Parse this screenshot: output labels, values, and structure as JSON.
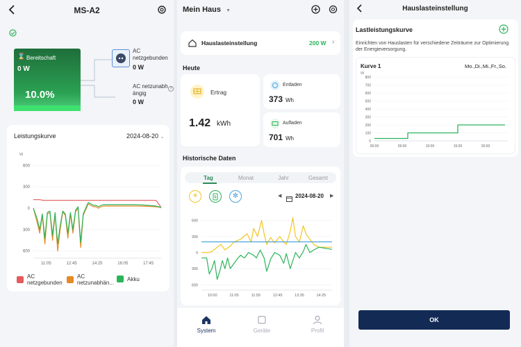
{
  "colors": {
    "green": "#2bb35a",
    "red": "#e35b5b",
    "orange": "#e58a26",
    "yellow": "#f2c522",
    "blue": "#4aa3e0",
    "navy": "#13284f",
    "ok_bg": "#132a55"
  },
  "screen1": {
    "title": "MS-A2",
    "status_icon": "check-circle-icon",
    "device_status": "Bereitschaft",
    "device_power": "0 W",
    "soc": "10.0%",
    "grid_label": "AC\nnetzgebunden",
    "grid_value": "0 W",
    "offgrid_label": "AC netzunabh\nängig",
    "offgrid_value": "0 W",
    "curve_title": "Leistungskurve",
    "curve_date": "2024-08-20",
    "legend": [
      {
        "label": "AC\nnetzgebunden",
        "color": "#e35b5b"
      },
      {
        "label": "AC\nnetzunabhän...",
        "color": "#e58a26"
      },
      {
        "label": "Akku",
        "color": "#2bb35a"
      }
    ]
  },
  "chart1_data": {
    "type": "line",
    "ylabel": "W",
    "ylim": [
      -700,
      700
    ],
    "yticks": [
      "600",
      "300",
      "0",
      "300",
      "600"
    ],
    "ytick_values": [
      600,
      300,
      0,
      -300,
      -600
    ],
    "xticks": [
      "11:05",
      "12:45",
      "14:25",
      "16:05",
      "17:45"
    ],
    "xlim": [
      0,
      100
    ],
    "series": [
      {
        "name": "AC netzgebunden",
        "color": "#e35b5b",
        "x": [
          0,
          5,
          8,
          20,
          40,
          60,
          80,
          96,
          100
        ],
        "y": [
          120,
          120,
          110,
          110,
          110,
          110,
          110,
          110,
          10
        ]
      },
      {
        "name": "AC netzunabhängig",
        "color": "#e58a26",
        "x": [
          0,
          3,
          5,
          7,
          9,
          11,
          13,
          15,
          17,
          19,
          21,
          23,
          25,
          27,
          29,
          31,
          33,
          35,
          37,
          39,
          41,
          43,
          45,
          47,
          49,
          51,
          53,
          55,
          60,
          70,
          80,
          90,
          96,
          100
        ],
        "y": [
          0,
          -200,
          -350,
          -100,
          -500,
          -80,
          -60,
          -450,
          -80,
          -600,
          -300,
          -50,
          -100,
          -420,
          -80,
          -350,
          -50,
          0,
          -550,
          -100,
          -20,
          60,
          40,
          20,
          20,
          0,
          20,
          30,
          30,
          30,
          30,
          25,
          20,
          10
        ]
      },
      {
        "name": "Akku",
        "color": "#2bb35a",
        "x": [
          0,
          3,
          5,
          7,
          9,
          11,
          13,
          15,
          17,
          19,
          21,
          23,
          25,
          27,
          29,
          31,
          33,
          35,
          37,
          39,
          41,
          43,
          45,
          47,
          49,
          51,
          53,
          55,
          60,
          70,
          80,
          90,
          96,
          100
        ],
        "y": [
          0,
          -150,
          -300,
          -80,
          -420,
          -60,
          -40,
          -380,
          -60,
          -500,
          -250,
          -40,
          -80,
          -350,
          -60,
          -300,
          -30,
          20,
          -480,
          -80,
          0,
          80,
          60,
          40,
          40,
          20,
          40,
          50,
          50,
          50,
          50,
          40,
          30,
          10
        ]
      }
    ]
  },
  "screen2": {
    "home_name": "Mein Haus",
    "baseload_label": "Hauslasteinstellung",
    "baseload_value": "200 W",
    "today_title": "Heute",
    "yield_label": "Ertrag",
    "yield_value": "1.42",
    "yield_unit": "kWh",
    "discharge_label": "Entladen",
    "discharge_value": "373",
    "discharge_unit": "Wh",
    "charge_label": "Aufladen",
    "charge_value": "701",
    "charge_unit": "Wh",
    "history_title": "Historische Daten",
    "tabs": [
      "Tag",
      "Monat",
      "Jahr",
      "Gesamt"
    ],
    "history_date": "2024-08-20",
    "nav": [
      {
        "label": "System",
        "icon": "home-icon"
      },
      {
        "label": "Geräte",
        "icon": "devices-icon"
      },
      {
        "label": "Profil",
        "icon": "profile-icon"
      }
    ]
  },
  "chart2_data": {
    "type": "line",
    "ylim": [
      -700,
      750
    ],
    "yticks": [
      "600",
      "300",
      "0",
      "300",
      "600"
    ],
    "ytick_values": [
      600,
      300,
      0,
      -300,
      -600
    ],
    "xticks": [
      "10:00",
      "11:05",
      "11:55",
      "12:45",
      "13:35",
      "14:25"
    ],
    "xlim": [
      0,
      100
    ],
    "series": [
      {
        "name": "Solar",
        "color": "#f2c522",
        "x": [
          0,
          5,
          8,
          12,
          15,
          18,
          22,
          25,
          30,
          35,
          38,
          40,
          43,
          46,
          48,
          50,
          53,
          56,
          60,
          63,
          65,
          68,
          70,
          72,
          75,
          78,
          80,
          83,
          86,
          90,
          95,
          100
        ],
        "y": [
          0,
          0,
          20,
          100,
          150,
          50,
          120,
          200,
          250,
          350,
          200,
          450,
          300,
          600,
          350,
          150,
          280,
          180,
          300,
          200,
          150,
          400,
          650,
          300,
          200,
          500,
          350,
          250,
          150,
          100,
          100,
          100
        ]
      },
      {
        "name": "Verbrauch",
        "color": "#4aa3e0",
        "x": [
          0,
          10,
          20,
          40,
          60,
          80,
          90,
          100
        ],
        "y": [
          200,
          200,
          200,
          200,
          200,
          200,
          200,
          200
        ]
      },
      {
        "name": "Akku",
        "color": "#2bb35a",
        "x": [
          0,
          4,
          6,
          8,
          10,
          12,
          14,
          16,
          18,
          20,
          22,
          25,
          28,
          30,
          33,
          36,
          40,
          42,
          45,
          48,
          50,
          53,
          56,
          60,
          63,
          65,
          68,
          70,
          72,
          75,
          78,
          80,
          83,
          86,
          90,
          95,
          100
        ],
        "y": [
          -100,
          -100,
          -400,
          -300,
          -150,
          -500,
          -350,
          -150,
          -300,
          -100,
          -300,
          -200,
          -100,
          -50,
          -100,
          0,
          -50,
          -100,
          50,
          -100,
          -350,
          -120,
          0,
          -50,
          -200,
          -20,
          -300,
          -150,
          0,
          -100,
          20,
          150,
          0,
          50,
          100,
          80,
          60
        ]
      }
    ]
  },
  "screen3": {
    "title": "Hauslasteinstellung",
    "curve_title": "Lastleistungskurve",
    "description": "Einrichten von Hauslasten für verschiedene Zeiträume zur Optimierung der Energieversorgung.",
    "curve_name": "Kurve 1",
    "curve_days": "Mo.,Di.,Mi.,Fr.,So.",
    "ok_label": "OK"
  },
  "chart3_data": {
    "type": "line",
    "ylabel": "W",
    "ylim": [
      0,
      800
    ],
    "yticks": [
      "800",
      "700",
      "600",
      "500",
      "400",
      "300",
      "200",
      "100",
      "0"
    ],
    "ytick_values": [
      800,
      700,
      600,
      500,
      400,
      300,
      200,
      100,
      0
    ],
    "xticks": [
      "00:00",
      "05:00",
      "10:00",
      "15:00",
      "20:00"
    ],
    "xlim": [
      0,
      24
    ],
    "series": [
      {
        "name": "Kurve 1",
        "color": "#2bb35a",
        "x": [
          0,
          6,
          6,
          15,
          15,
          23.5
        ],
        "y": [
          30,
          30,
          100,
          100,
          200,
          200
        ]
      }
    ]
  }
}
